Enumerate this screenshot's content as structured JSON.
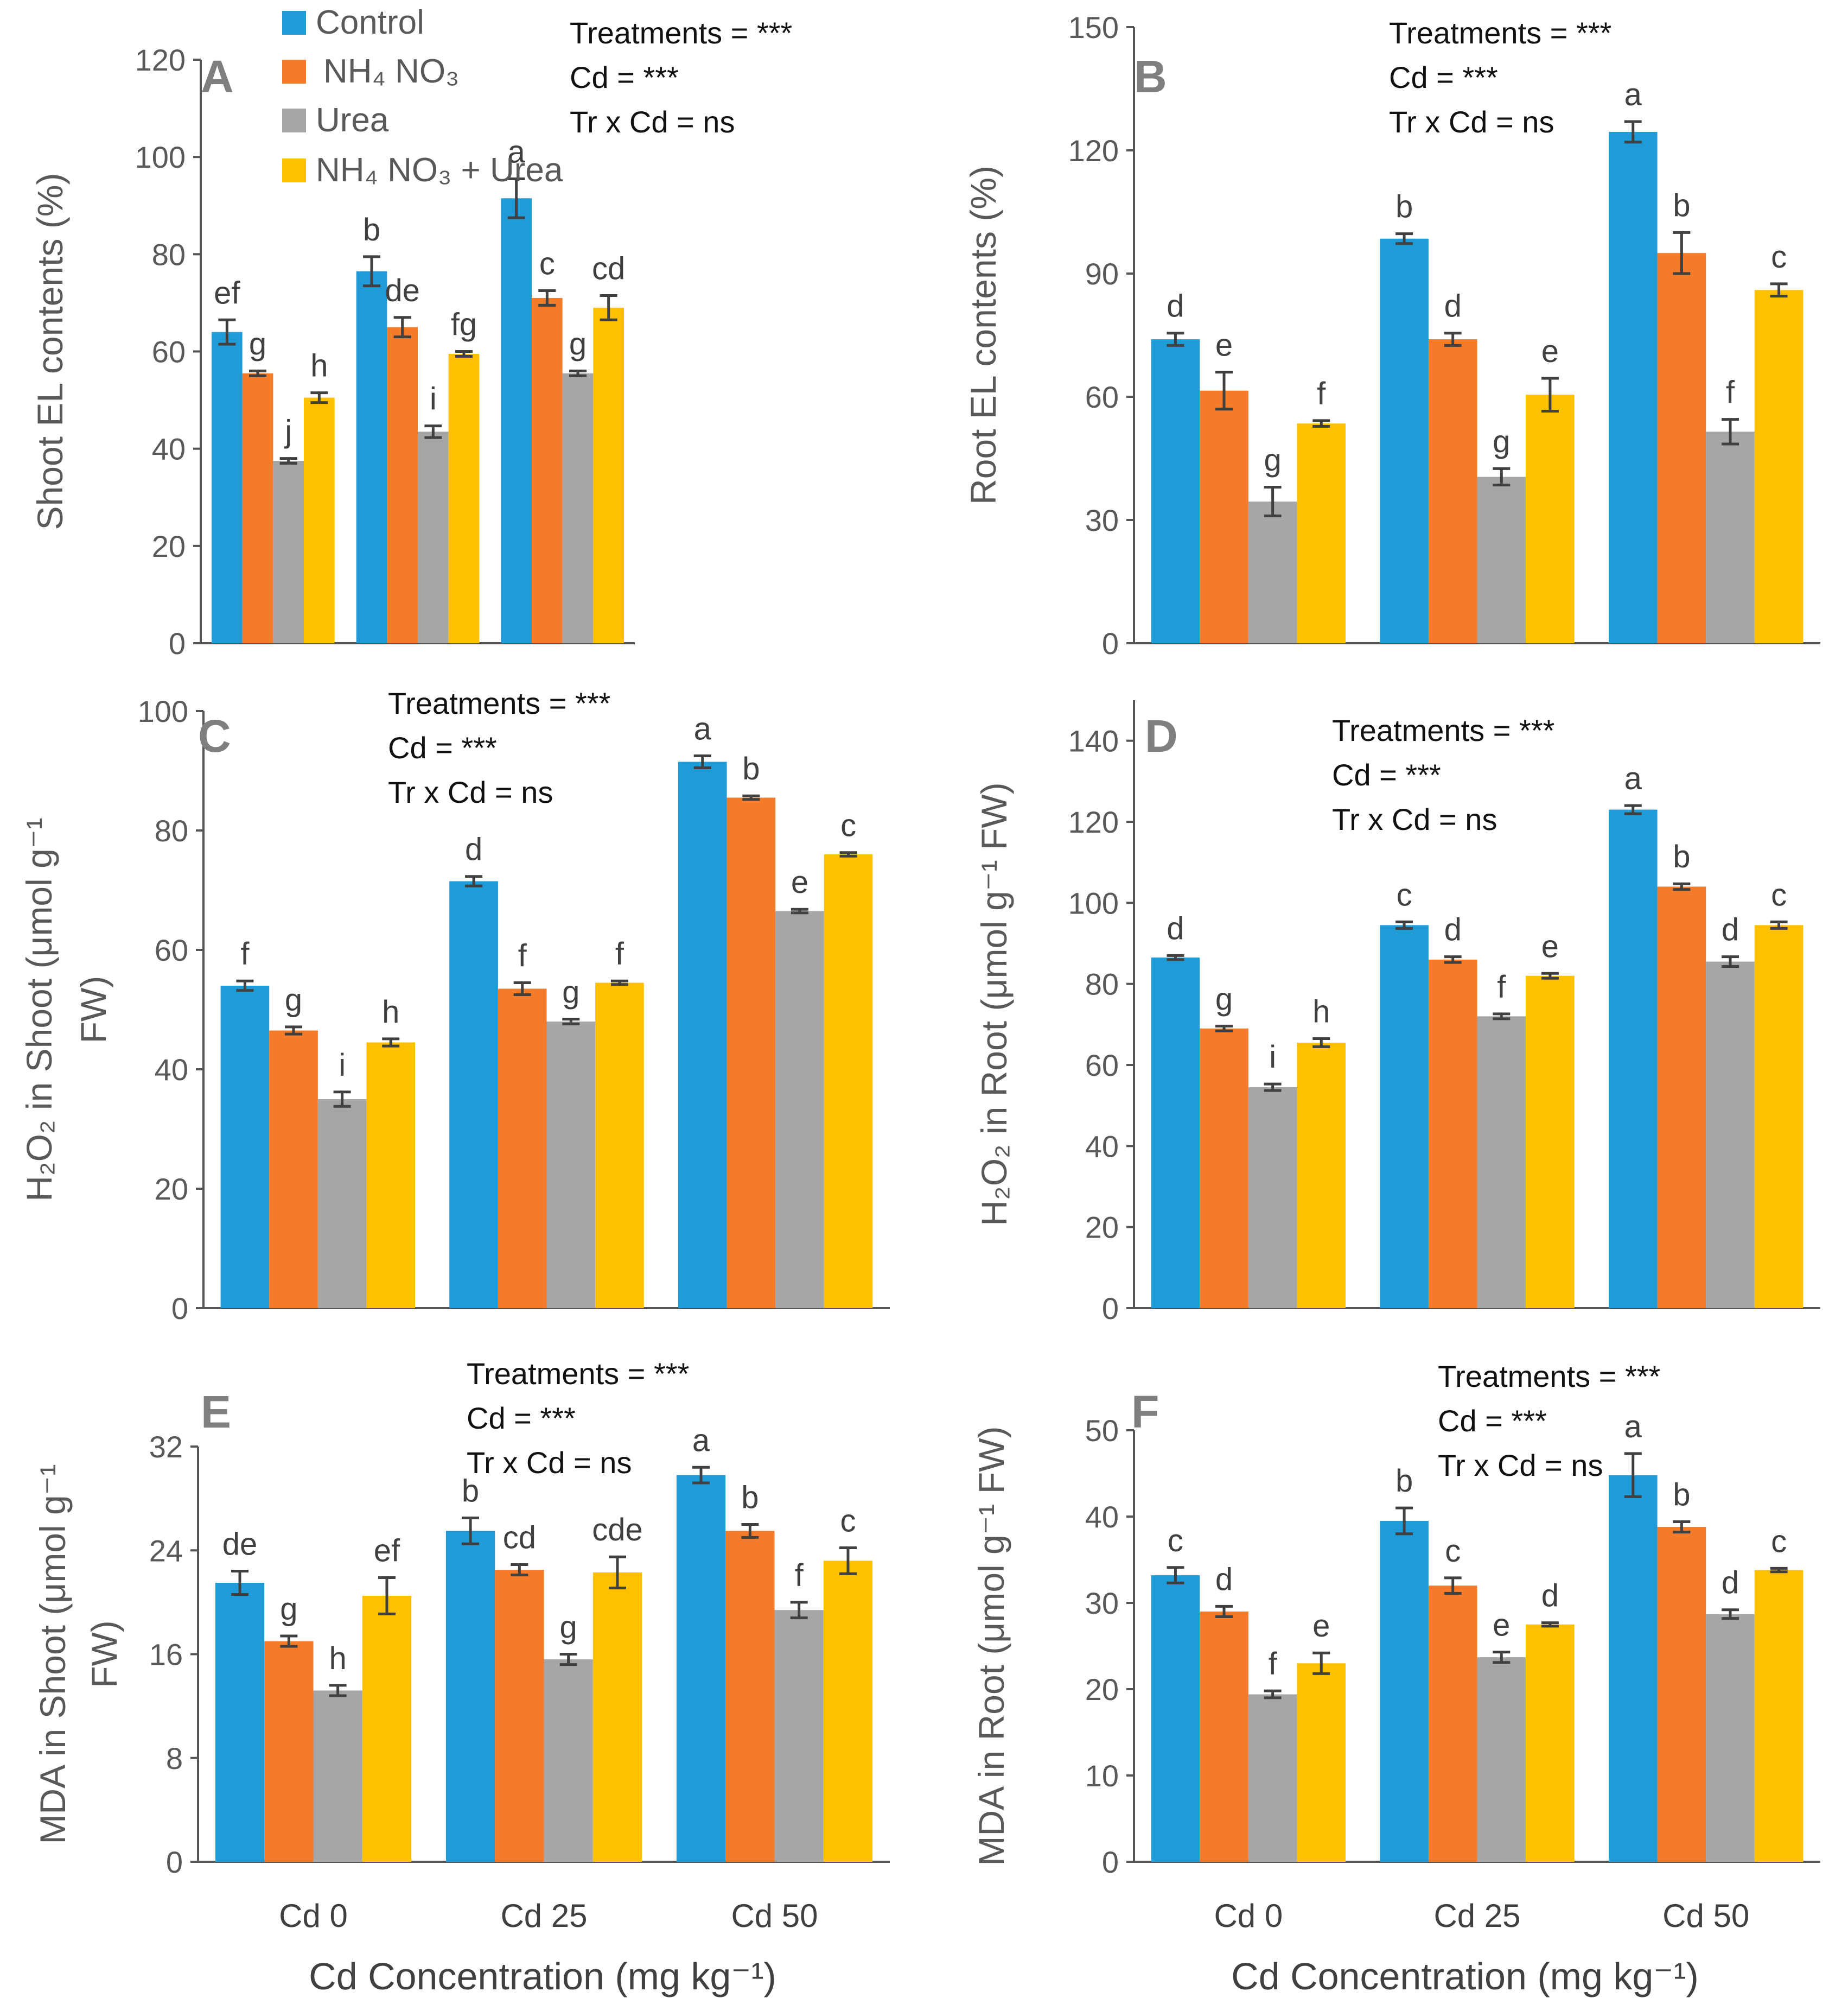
{
  "legend": {
    "entries": [
      {
        "label": "Control",
        "color": "#1f9bd7"
      },
      {
        "label": "NH₄ NO₃",
        "color": "#f47b29"
      },
      {
        "label": "Urea",
        "color": "#a6a6a6"
      },
      {
        "label": "NH₄ NO₃ + Urea",
        "color": "#ffc000"
      }
    ]
  },
  "x_axis_title": "Cd Concentration (mg kg⁻¹)",
  "chart_data": [
    {
      "type": "bar",
      "panel": "A",
      "ylabel_lines": [
        "Shoot  EL contents  (%)"
      ],
      "ylim": [
        0,
        120
      ],
      "yticks": [
        0,
        20,
        40,
        60,
        80,
        100,
        120
      ],
      "stats": [
        "Treatments = ***",
        "Cd = ***",
        "Tr x Cd = ns"
      ],
      "categories": [
        "Cd 0",
        "Cd 25",
        "Cd 50"
      ],
      "series": [
        {
          "name": "Control",
          "values": [
            64,
            76.5,
            91.5
          ],
          "errors": [
            2.5,
            3,
            4
          ],
          "letters": [
            "ef",
            "b",
            "a"
          ]
        },
        {
          "name": "NH₄ NO₃",
          "values": [
            55.5,
            65,
            71
          ],
          "errors": [
            0.5,
            2,
            1.5
          ],
          "letters": [
            "g",
            "de",
            "c"
          ]
        },
        {
          "name": "Urea",
          "values": [
            37.5,
            43.5,
            55.5
          ],
          "errors": [
            0.5,
            1.2,
            0.5
          ],
          "letters": [
            "j",
            "i",
            "g"
          ]
        },
        {
          "name": "NH₄ NO₃ + Urea",
          "values": [
            50.5,
            59.5,
            69
          ],
          "errors": [
            1,
            0.5,
            2.5
          ],
          "letters": [
            "h",
            "fg",
            "cd"
          ]
        }
      ]
    },
    {
      "type": "bar",
      "panel": "B",
      "ylabel_lines": [
        "Root EL contents  (%)"
      ],
      "ylim": [
        0,
        150
      ],
      "yticks": [
        0,
        30,
        60,
        90,
        120,
        150
      ],
      "stats": [
        "Treatments = ***",
        "Cd = ***",
        "Tr x Cd = ns"
      ],
      "categories": [
        "Cd 0",
        "Cd 25",
        "Cd 50"
      ],
      "series": [
        {
          "name": "Control",
          "values": [
            74,
            98.5,
            124.5
          ],
          "errors": [
            1.5,
            1.2,
            2.5
          ],
          "letters": [
            "d",
            "b",
            "a"
          ]
        },
        {
          "name": "NH₄ NO₃",
          "values": [
            61.5,
            74,
            95
          ],
          "errors": [
            4.5,
            1.5,
            5
          ],
          "letters": [
            "e",
            "d",
            "b"
          ]
        },
        {
          "name": "Urea",
          "values": [
            34.5,
            40.5,
            51.5
          ],
          "errors": [
            3.5,
            2,
            3
          ],
          "letters": [
            "g",
            "g",
            "f"
          ]
        },
        {
          "name": "NH₄ NO₃ + Urea",
          "values": [
            53.5,
            60.5,
            86
          ],
          "errors": [
            0.7,
            4,
            1.5
          ],
          "letters": [
            "f",
            "e",
            "c"
          ]
        }
      ]
    },
    {
      "type": "bar",
      "panel": "C",
      "ylabel_lines": [
        "H₂O₂ in Shoot (μmol g⁻¹",
        "FW)"
      ],
      "ylim": [
        0,
        100
      ],
      "yticks": [
        0,
        20,
        40,
        60,
        80,
        100
      ],
      "stats": [
        "Treatments = ***",
        "Cd = ***",
        "Tr x Cd = ns"
      ],
      "categories": [
        "Cd 0",
        "Cd 25",
        "Cd 50"
      ],
      "series": [
        {
          "name": "Control",
          "values": [
            54,
            71.5,
            91.5
          ],
          "errors": [
            0.8,
            0.8,
            1
          ],
          "letters": [
            "f",
            "d",
            "a"
          ]
        },
        {
          "name": "NH₄ NO₃",
          "values": [
            46.5,
            53.5,
            85.5
          ],
          "errors": [
            0.6,
            1,
            0.3
          ],
          "letters": [
            "g",
            "f",
            "b"
          ]
        },
        {
          "name": "Urea",
          "values": [
            35,
            48,
            66.5
          ],
          "errors": [
            1.2,
            0.4,
            0.3
          ],
          "letters": [
            "i",
            "g",
            "e"
          ]
        },
        {
          "name": "NH₄ NO₃ + Urea",
          "values": [
            44.5,
            54.5,
            76
          ],
          "errors": [
            0.6,
            0.3,
            0.3
          ],
          "letters": [
            "h",
            "f",
            "c"
          ]
        }
      ]
    },
    {
      "type": "bar",
      "panel": "D",
      "ylabel_lines": [
        "H₂O₂ in Root (μmol g⁻¹ FW)"
      ],
      "ylim": [
        0,
        150
      ],
      "yticks": [
        0,
        20,
        40,
        60,
        80,
        100,
        120,
        140
      ],
      "stats": [
        "Treatments = ***",
        "Cd = ***",
        "Tr x Cd = ns"
      ],
      "categories": [
        "Cd 0",
        "Cd 25",
        "Cd 50"
      ],
      "series": [
        {
          "name": "Control",
          "values": [
            86.5,
            94.5,
            123
          ],
          "errors": [
            0.5,
            0.8,
            1
          ],
          "letters": [
            "d",
            "c",
            "a"
          ]
        },
        {
          "name": "NH₄ NO₃",
          "values": [
            69,
            86,
            104
          ],
          "errors": [
            0.6,
            0.7,
            0.7
          ],
          "letters": [
            "g",
            "d",
            "b"
          ]
        },
        {
          "name": "Urea",
          "values": [
            54.5,
            72,
            85.5
          ],
          "errors": [
            0.8,
            0.6,
            1.2
          ],
          "letters": [
            "i",
            "f",
            "d"
          ]
        },
        {
          "name": "NH₄ NO₃ + Urea",
          "values": [
            65.5,
            82,
            94.5
          ],
          "errors": [
            1,
            0.6,
            0.8
          ],
          "letters": [
            "h",
            "e",
            "c"
          ]
        }
      ]
    },
    {
      "type": "bar",
      "panel": "E",
      "ylabel_lines": [
        "MDA in Shoot (μmol g⁻¹",
        "FW)"
      ],
      "ylim": [
        0,
        32
      ],
      "yticks": [
        0,
        8,
        16,
        24,
        32
      ],
      "stats": [
        "Treatments = ***",
        "Cd = ***",
        "Tr x Cd = ns"
      ],
      "categories": [
        "Cd 0",
        "Cd 25",
        "Cd 50"
      ],
      "series": [
        {
          "name": "Control",
          "values": [
            21.5,
            25.5,
            29.8
          ],
          "errors": [
            0.9,
            1,
            0.6
          ],
          "letters": [
            "de",
            "b",
            "a"
          ]
        },
        {
          "name": "NH₄ NO₃",
          "values": [
            17,
            22.5,
            25.5
          ],
          "errors": [
            0.4,
            0.4,
            0.5
          ],
          "letters": [
            "g",
            "cd",
            "b"
          ]
        },
        {
          "name": "Urea",
          "values": [
            13.2,
            15.6,
            19.4
          ],
          "errors": [
            0.4,
            0.4,
            0.6
          ],
          "letters": [
            "h",
            "g",
            "f"
          ]
        },
        {
          "name": "NH₄ NO₃ + Urea",
          "values": [
            20.5,
            22.3,
            23.2
          ],
          "errors": [
            1.4,
            1.2,
            1
          ],
          "letters": [
            "ef",
            "cde",
            "c"
          ]
        }
      ]
    },
    {
      "type": "bar",
      "panel": "F",
      "ylabel_lines": [
        "MDA in Root (μmol g⁻¹ FW)"
      ],
      "ylim": [
        0,
        50
      ],
      "yticks": [
        0,
        10,
        20,
        30,
        40,
        50
      ],
      "stats": [
        "Treatments = ***",
        "Cd = ***",
        "Tr x Cd = ns"
      ],
      "categories": [
        "Cd 0",
        "Cd 25",
        "Cd 50"
      ],
      "series": [
        {
          "name": "Control",
          "values": [
            33.2,
            39.5,
            44.8
          ],
          "errors": [
            0.9,
            1.5,
            2.5
          ],
          "letters": [
            "c",
            "b",
            "a"
          ]
        },
        {
          "name": "NH₄ NO₃",
          "values": [
            29,
            32,
            38.8
          ],
          "errors": [
            0.6,
            0.9,
            0.6
          ],
          "letters": [
            "d",
            "c",
            "b"
          ]
        },
        {
          "name": "Urea",
          "values": [
            19.4,
            23.7,
            28.7
          ],
          "errors": [
            0.4,
            0.6,
            0.5
          ],
          "letters": [
            "f",
            "e",
            "d"
          ]
        },
        {
          "name": "NH₄ NO₃ + Urea",
          "values": [
            23,
            27.5,
            33.8
          ],
          "errors": [
            1.2,
            0.2,
            0.2
          ],
          "letters": [
            "e",
            "d",
            "c"
          ]
        }
      ]
    }
  ]
}
